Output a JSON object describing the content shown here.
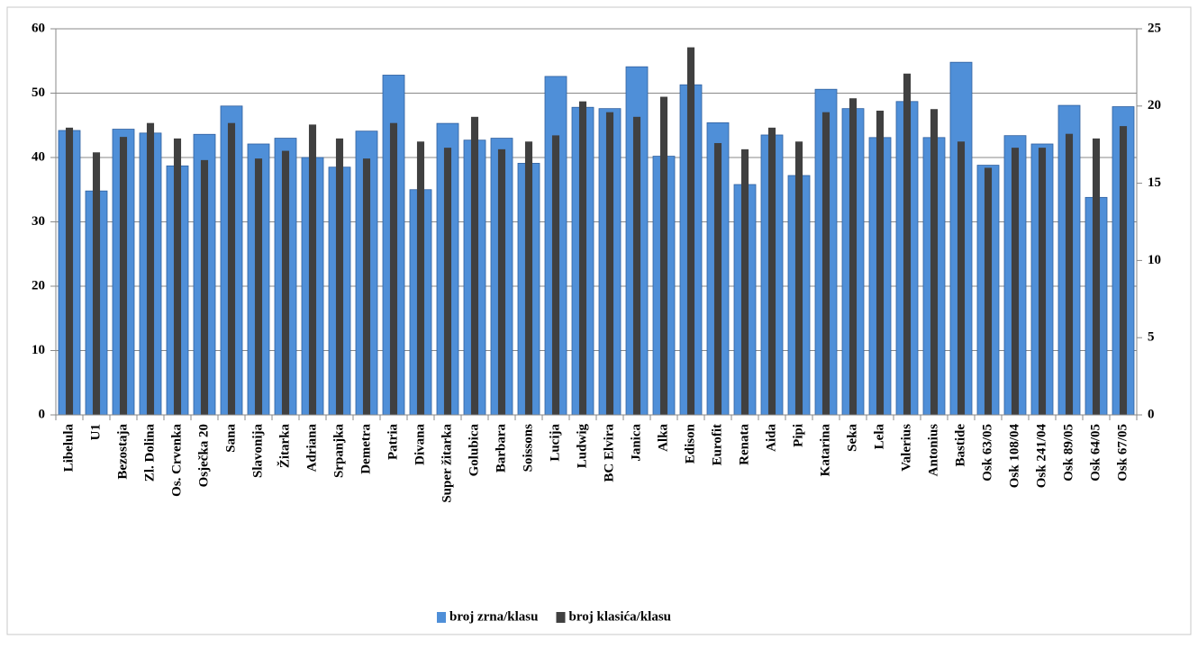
{
  "chart_data": {
    "type": "bar",
    "categories": [
      "Libelula",
      "U1",
      "Bezostaja",
      "Zl. Dolina",
      "Os. Crvenka",
      "Osječka 20",
      "Sana",
      "Slavonija",
      "Žitarka",
      "Adriana",
      "Srpanjka",
      "Demetra",
      "Patria",
      "Divana",
      "Super žitarka",
      "Golubica",
      "Barbara",
      "Soissons",
      "Lucija",
      "Ludwig",
      "BC Elvira",
      "Janica",
      "Alka",
      "Edison",
      "Eurofit",
      "Renata",
      "Aida",
      "Pipi",
      "Katarina",
      "Seka",
      "Lela",
      "Valerius",
      "Antonius",
      "Bastide",
      "Osk 63/05",
      "Osk 108/04",
      "Osk 241/04",
      "Osk 89/05",
      "Osk 64/05",
      "Osk 67/05"
    ],
    "series": [
      {
        "name": "broj zrna/klasu",
        "color": "#4f8fd8",
        "values": [
          44.2,
          34.8,
          44.4,
          43.8,
          38.7,
          43.6,
          48,
          42.1,
          43,
          40,
          38.5,
          44.1,
          52.8,
          35,
          45.3,
          42.7,
          43,
          39.1,
          52.6,
          47.8,
          47.6,
          54.1,
          40.2,
          51.3,
          45.4,
          35.8,
          43.5,
          37.2,
          50.6,
          47.6,
          43.1,
          48.7,
          43.1,
          54.8,
          38.8,
          43.4,
          42.1,
          48.1,
          33.8,
          47.9
        ]
      },
      {
        "name": "broj klasića/klasu",
        "color": "#404040",
        "axis": "y2",
        "values": [
          18.6,
          17,
          18,
          18.9,
          17.9,
          16.5,
          18.9,
          16.6,
          17.1,
          18.8,
          17.9,
          16.6,
          18.9,
          17.7,
          17.3,
          19.3,
          17.2,
          17.7,
          18.1,
          20.3,
          19.6,
          19.3,
          20.6,
          23.8,
          17.6,
          17.2,
          18.6,
          17.7,
          19.6,
          20.5,
          19.7,
          22.1,
          19.8,
          17.7,
          16,
          17.3,
          17.3,
          18.2,
          17.9,
          18.7
        ]
      }
    ],
    "ylim": [
      0,
      60
    ],
    "yticks": [
      0,
      10,
      20,
      30,
      40,
      50,
      60
    ],
    "y2lim": [
      0,
      25
    ],
    "y2ticks": [
      0,
      5,
      10,
      15,
      20,
      25
    ],
    "grid": true,
    "legend": "bottom"
  }
}
